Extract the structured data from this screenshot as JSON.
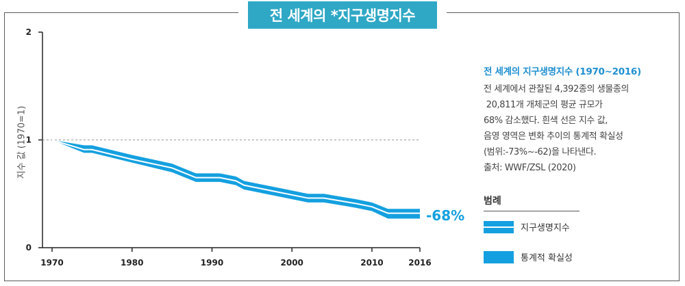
{
  "header": {
    "title": "전 세계의 *지구생명지수"
  },
  "chart_data": {
    "type": "area",
    "title": "전 세계의 *지구생명지수",
    "ylabel": "지수 값 (1970=1)",
    "xlabel": "",
    "xlim": [
      1970,
      2016
    ],
    "ylim": [
      0,
      2
    ],
    "x_ticks": [
      "1970",
      "1980",
      "1990",
      "2000",
      "2010",
      "2016"
    ],
    "y_ticks": [
      "0",
      "1",
      "2"
    ],
    "baseline": 1,
    "series": [
      {
        "name": "지구생명지수",
        "x": [
          1970,
          1974,
          1975,
          1980,
          1985,
          1988,
          1991,
          1993,
          1994,
          1998,
          2002,
          2004,
          2008,
          2010,
          2012,
          2016
        ],
        "values": [
          1.0,
          0.91,
          0.91,
          0.82,
          0.74,
          0.65,
          0.65,
          0.62,
          0.58,
          0.52,
          0.46,
          0.46,
          0.41,
          0.38,
          0.32,
          0.32
        ],
        "lower": [
          1.0,
          0.88,
          0.88,
          0.79,
          0.7,
          0.61,
          0.61,
          0.58,
          0.54,
          0.48,
          0.42,
          0.42,
          0.37,
          0.34,
          0.27,
          0.27
        ],
        "upper": [
          1.0,
          0.95,
          0.95,
          0.86,
          0.78,
          0.69,
          0.69,
          0.66,
          0.62,
          0.56,
          0.5,
          0.5,
          0.45,
          0.42,
          0.36,
          0.36
        ]
      }
    ],
    "annotation": "-68%"
  },
  "panel": {
    "title": "전 세계의 지구생명지수 (1970~2016)",
    "lines": [
      "전 세계에서 관찰된 4,392종의 생물종의",
      " 20,811개 개체군의 평균 규모가",
      "68% 감소했다. 흰색 선은 지수 값,",
      "음영 영역은 변화 추이의 통계적 확실성",
      "(범위:-73%~-62)을 나타낸다.",
      "출처: WWF/ZSL (2020)"
    ]
  },
  "legend": {
    "heading": "범례",
    "items": [
      {
        "label": "지구생명지수"
      },
      {
        "label": "통계적 확실성"
      }
    ]
  },
  "colors": {
    "accent": "#14a0e0",
    "title_bg": "#2fa8c6",
    "panel_title": "#1f8fd0"
  }
}
